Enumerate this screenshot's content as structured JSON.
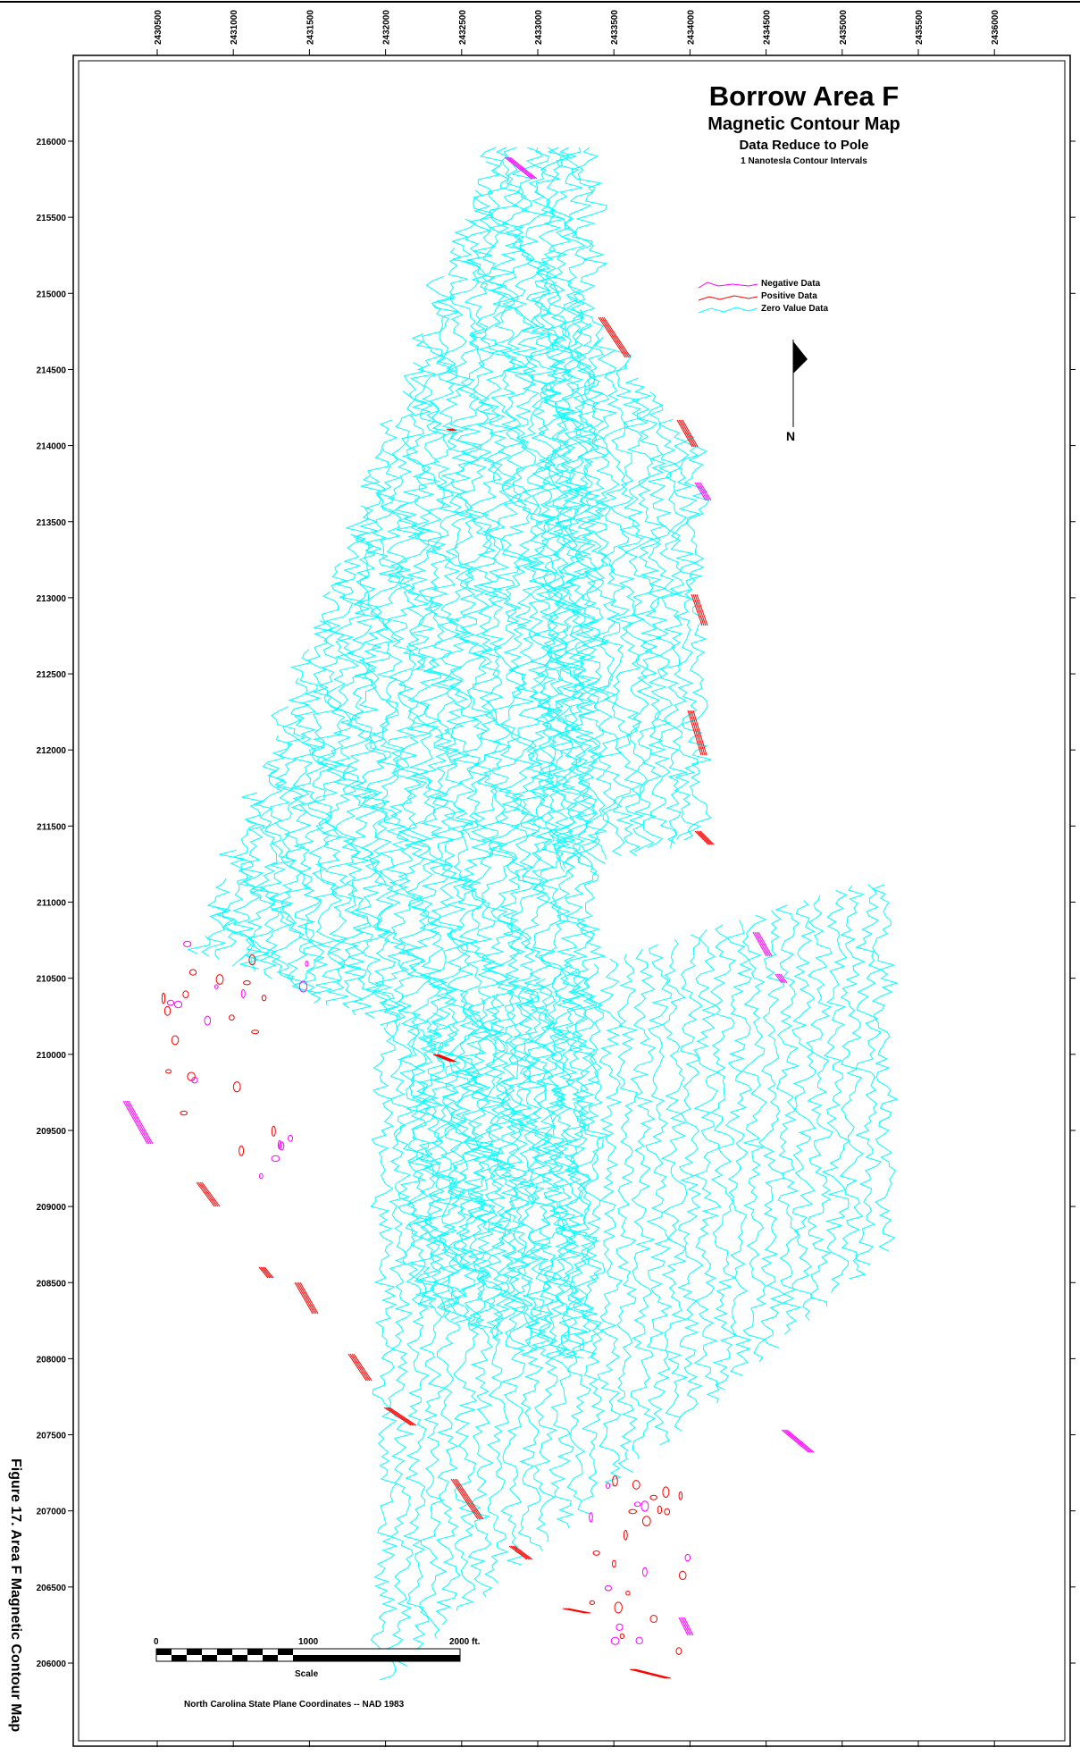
{
  "map": {
    "title": "Borrow Area F",
    "subtitle": "Magnetic Contour Map",
    "subtitle2": "Data Reduce to Pole",
    "subtitle3": "1 Nanotesla Contour Intervals",
    "figure_caption": "Figure 17. Area F Magnetic Contour Map",
    "coordinate_note": "North Carolina State Plane Coordinates -- NAD 1983",
    "north_label": "N",
    "x_ticks": [
      "2430500",
      "2431000",
      "2431500",
      "2432000",
      "2432500",
      "2433000",
      "2433500",
      "2434000",
      "2434500",
      "2435000",
      "2435500",
      "2436000"
    ],
    "y_ticks": [
      "216000",
      "215500",
      "215000",
      "214500",
      "214000",
      "213500",
      "213000",
      "212500",
      "212000",
      "211500",
      "211000",
      "210500",
      "210000",
      "209500",
      "209000",
      "208500",
      "208000",
      "207500",
      "207000",
      "206500",
      "206000"
    ],
    "legend": [
      {
        "label": "Negative Data",
        "color": "#ff00ff"
      },
      {
        "label": "Positive Data",
        "color": "#ff0000"
      },
      {
        "label": "Zero Value Data",
        "color": "#00ffff"
      }
    ],
    "scale": {
      "label": "Scale",
      "ticks": [
        "0",
        "1000",
        "2000 ft."
      ]
    },
    "colors": {
      "zero": "#00ffff",
      "positive": "#ff0000",
      "negative": "#ff00ff"
    }
  }
}
